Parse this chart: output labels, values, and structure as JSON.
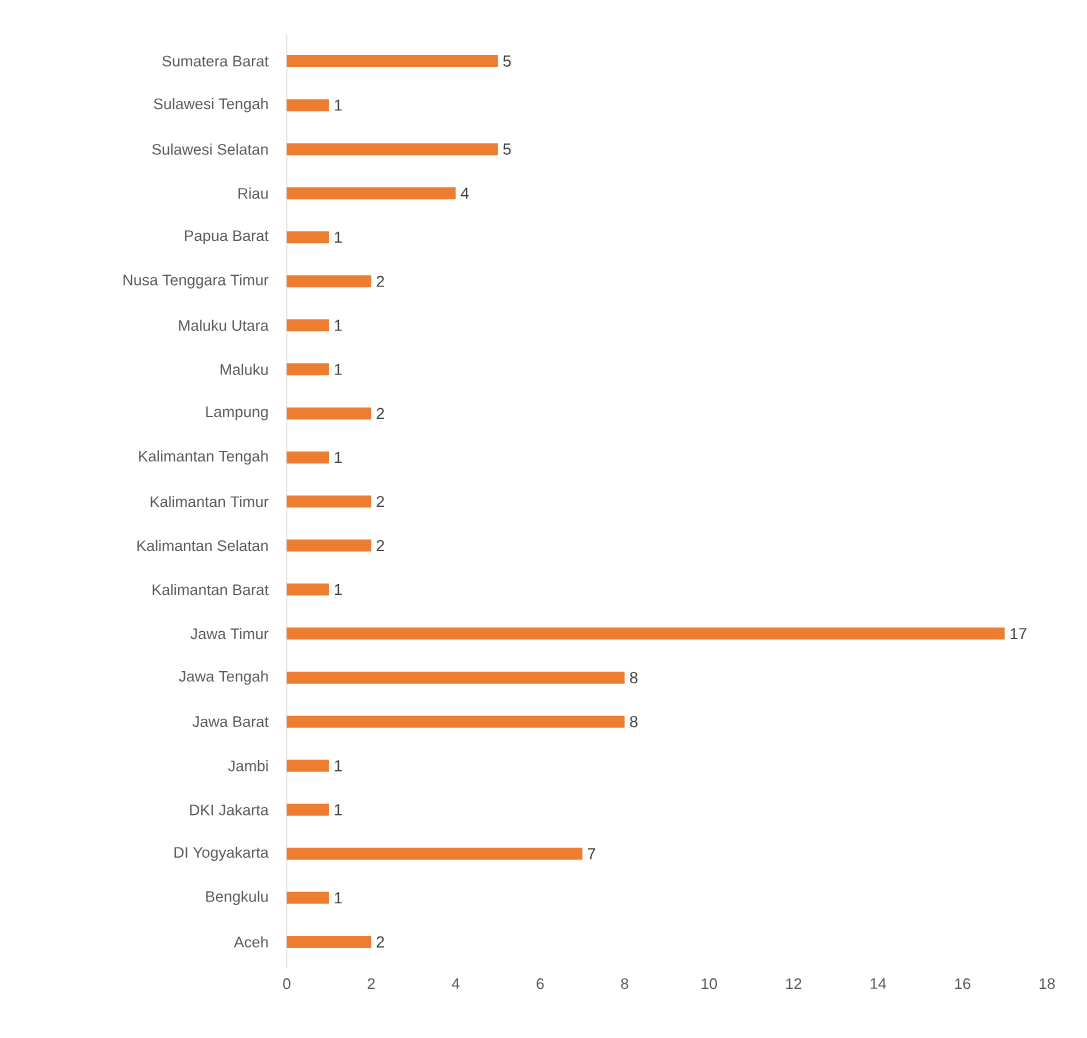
{
  "chart_data": {
    "type": "bar",
    "orientation": "horizontal",
    "categories": [
      "Sumatera Barat",
      "Sulawesi Tengah",
      "Sulawesi Selatan",
      "Riau",
      "Papua Barat",
      "Nusa Tenggara Timur",
      "Maluku Utara",
      "Maluku",
      "Lampung",
      "Kalimantan Tengah",
      "Kalimantan Timur",
      "Kalimantan Selatan",
      "Kalimantan Barat",
      "Jawa Timur",
      "Jawa Tengah",
      "Jawa Barat",
      "Jambi",
      "DKI Jakarta",
      "DI Yogyakarta",
      "Bengkulu",
      "Aceh"
    ],
    "values": [
      5,
      1,
      5,
      4,
      1,
      2,
      1,
      1,
      2,
      1,
      2,
      2,
      1,
      17,
      8,
      8,
      1,
      1,
      7,
      1,
      2
    ],
    "color": "#ed7d31",
    "xlim": [
      0,
      18
    ],
    "xticks": [
      0,
      2,
      4,
      6,
      8,
      10,
      12,
      14,
      16,
      18
    ],
    "data_labels": true
  }
}
